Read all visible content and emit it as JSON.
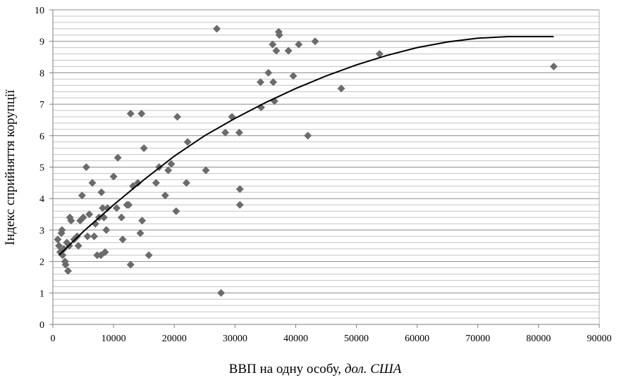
{
  "chart_data": {
    "type": "scatter",
    "xlabel_main": "ВВП на одну особу, ",
    "xlabel_italic": "дол. США",
    "ylabel": "Індекс сприйняття корупції",
    "xlim": [
      0,
      90000
    ],
    "ylim": [
      0,
      10
    ],
    "xticks": [
      0,
      10000,
      20000,
      30000,
      40000,
      50000,
      60000,
      70000,
      80000,
      90000
    ],
    "yticks": [
      0,
      1,
      2,
      3,
      4,
      5,
      6,
      7,
      8,
      9,
      10
    ],
    "grid": true,
    "legend": "none",
    "marker_color": "#6b6b6b",
    "line_color": "#000000",
    "points": [
      [
        800,
        2.7
      ],
      [
        1000,
        2.5
      ],
      [
        1200,
        2.3
      ],
      [
        1400,
        2.9
      ],
      [
        1500,
        3.0
      ],
      [
        1600,
        2.2
      ],
      [
        1800,
        2.4
      ],
      [
        2000,
        2.0
      ],
      [
        2100,
        1.9
      ],
      [
        2300,
        2.6
      ],
      [
        2500,
        1.7
      ],
      [
        2700,
        2.5
      ],
      [
        2800,
        3.4
      ],
      [
        3000,
        3.3
      ],
      [
        3500,
        2.7
      ],
      [
        4000,
        2.8
      ],
      [
        4200,
        2.5
      ],
      [
        4500,
        3.3
      ],
      [
        4800,
        4.1
      ],
      [
        5000,
        3.4
      ],
      [
        5500,
        5.0
      ],
      [
        5700,
        2.8
      ],
      [
        6000,
        3.5
      ],
      [
        6500,
        4.5
      ],
      [
        6800,
        2.8
      ],
      [
        7000,
        3.2
      ],
      [
        7300,
        2.2
      ],
      [
        7600,
        3.4
      ],
      [
        7900,
        2.2
      ],
      [
        8000,
        4.2
      ],
      [
        8200,
        3.7
      ],
      [
        8400,
        3.4
      ],
      [
        8600,
        2.3
      ],
      [
        8800,
        3.0
      ],
      [
        9000,
        3.7
      ],
      [
        10000,
        4.7
      ],
      [
        10500,
        3.7
      ],
      [
        10700,
        5.3
      ],
      [
        11300,
        3.4
      ],
      [
        11500,
        2.7
      ],
      [
        12200,
        3.8
      ],
      [
        12500,
        3.8
      ],
      [
        12800,
        6.7
      ],
      [
        12800,
        1.9
      ],
      [
        13200,
        4.4
      ],
      [
        14000,
        4.5
      ],
      [
        14400,
        2.9
      ],
      [
        14600,
        6.7
      ],
      [
        14700,
        3.3
      ],
      [
        15000,
        5.6
      ],
      [
        15800,
        2.2
      ],
      [
        17000,
        4.5
      ],
      [
        17500,
        5.0
      ],
      [
        18500,
        4.1
      ],
      [
        19000,
        4.9
      ],
      [
        19500,
        5.1
      ],
      [
        20300,
        3.6
      ],
      [
        20500,
        6.6
      ],
      [
        22000,
        4.5
      ],
      [
        22200,
        5.8
      ],
      [
        25200,
        4.9
      ],
      [
        27000,
        9.4
      ],
      [
        27700,
        1.0
      ],
      [
        28400,
        6.1
      ],
      [
        29500,
        6.6
      ],
      [
        30700,
        6.1
      ],
      [
        30800,
        4.3
      ],
      [
        30800,
        3.8
      ],
      [
        34200,
        7.7
      ],
      [
        34300,
        6.9
      ],
      [
        35500,
        8.0
      ],
      [
        36200,
        8.9
      ],
      [
        36300,
        7.7
      ],
      [
        36500,
        7.1
      ],
      [
        36800,
        8.7
      ],
      [
        37200,
        9.3
      ],
      [
        37300,
        9.2
      ],
      [
        38800,
        8.7
      ],
      [
        39600,
        7.9
      ],
      [
        40500,
        8.9
      ],
      [
        42000,
        6.0
      ],
      [
        43200,
        9.0
      ],
      [
        47500,
        7.5
      ],
      [
        53800,
        8.6
      ],
      [
        82500,
        8.2
      ]
    ],
    "trendline": [
      [
        1000,
        2.2
      ],
      [
        5000,
        2.95
      ],
      [
        10000,
        3.8
      ],
      [
        15000,
        4.6
      ],
      [
        20000,
        5.35
      ],
      [
        25000,
        6.0
      ],
      [
        30000,
        6.55
      ],
      [
        35000,
        7.05
      ],
      [
        40000,
        7.5
      ],
      [
        45000,
        7.9
      ],
      [
        50000,
        8.25
      ],
      [
        55000,
        8.55
      ],
      [
        60000,
        8.8
      ],
      [
        65000,
        8.98
      ],
      [
        70000,
        9.1
      ],
      [
        75000,
        9.15
      ],
      [
        82500,
        9.15
      ]
    ]
  }
}
